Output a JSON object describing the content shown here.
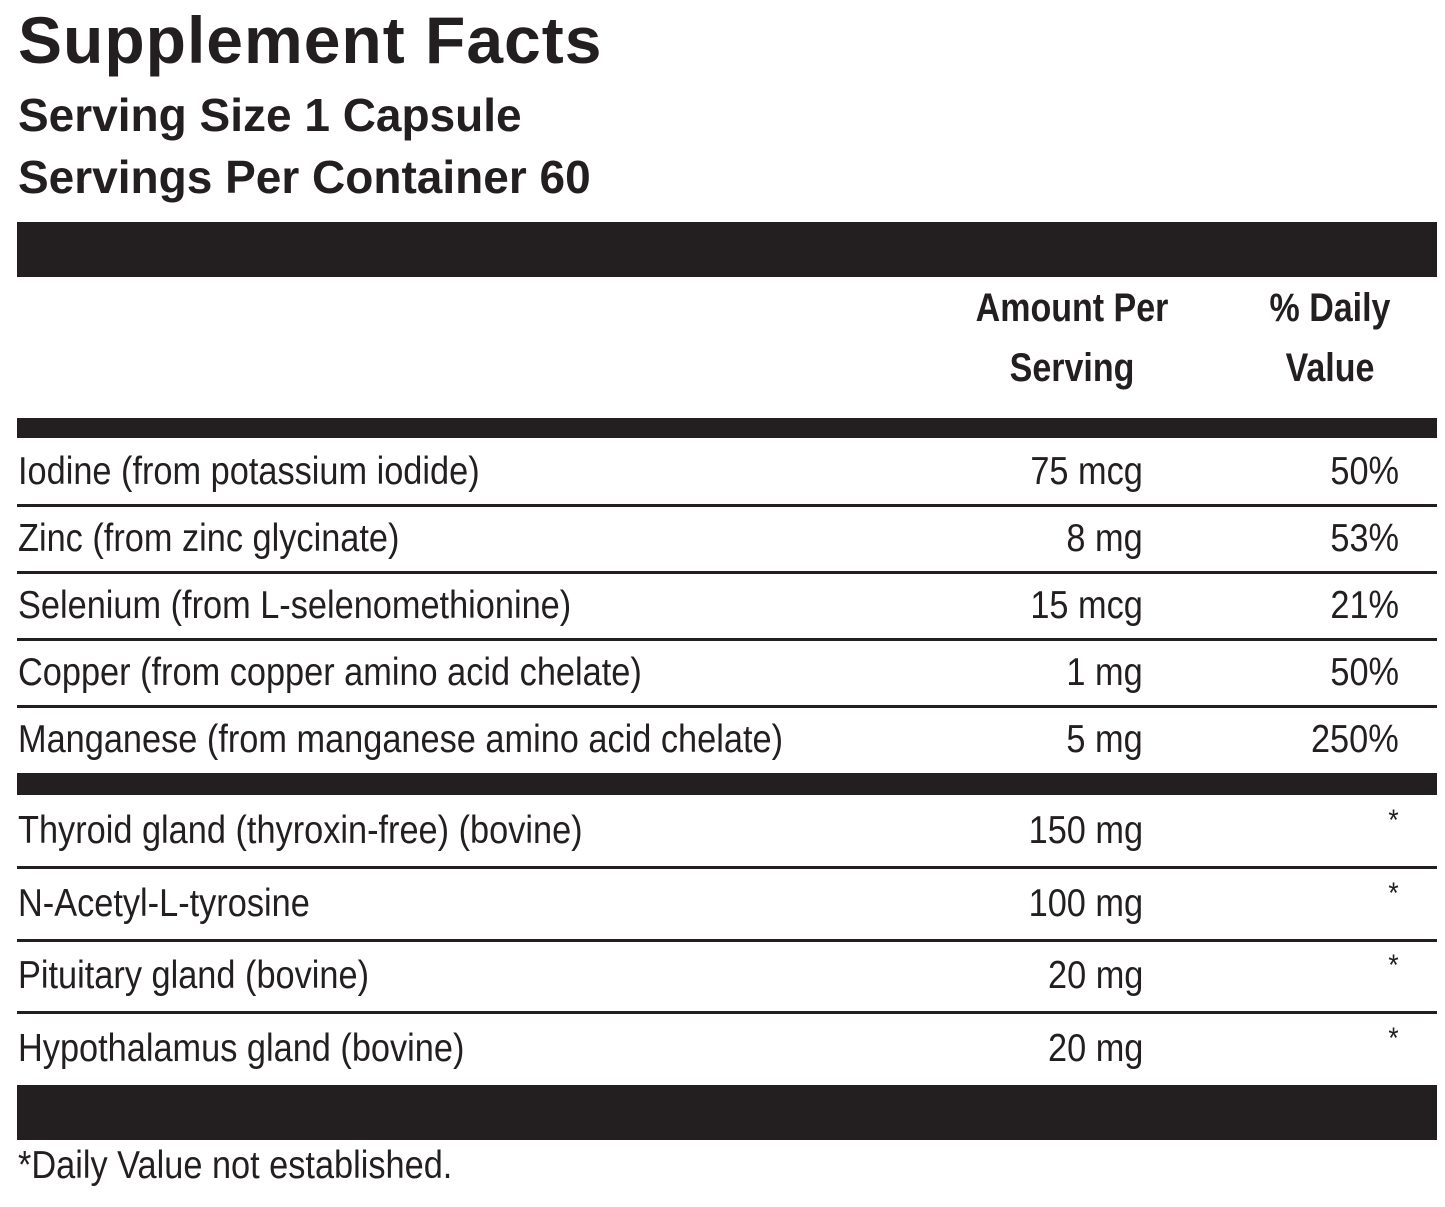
{
  "header": {
    "title": "Supplement Facts",
    "serving_size": "Serving Size 1 Capsule",
    "servings_per_container": "Servings Per Container 60"
  },
  "table": {
    "columns": [
      "Amount Per Serving",
      "% Daily Value"
    ],
    "groups": [
      [
        [
          "Iodine (from potassium iodide)",
          "75 mcg",
          "50%"
        ],
        [
          "Zinc (from zinc glycinate)",
          "8 mg",
          "53%"
        ],
        [
          "Selenium (from L-selenomethionine)",
          "15 mcg",
          "21%"
        ],
        [
          "Copper (from copper amino acid chelate)",
          "1 mg",
          "50%"
        ],
        [
          "Manganese (from manganese amino acid chelate)",
          "5 mg",
          "250%"
        ]
      ],
      [
        [
          "Thyroid gland (thyroxin-free) (bovine)",
          "150 mg",
          "*"
        ],
        [
          "N-Acetyl-L-tyrosine",
          "100 mg",
          "*"
        ],
        [
          "Pituitary gland (bovine)",
          "20 mg",
          "*"
        ],
        [
          "Hypothalamus gland (bovine)",
          "20 mg",
          "*"
        ]
      ]
    ]
  },
  "footnote": "*Daily Value not established."
}
